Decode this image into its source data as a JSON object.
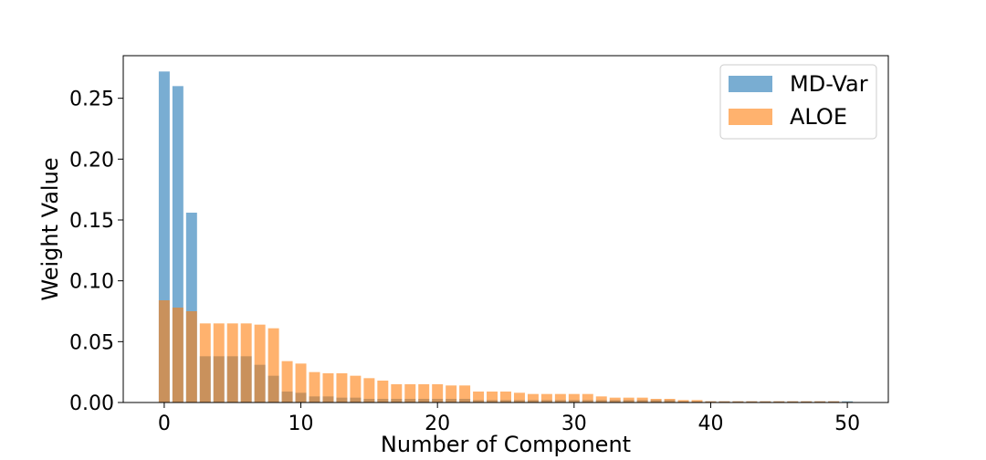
{
  "chart_data": {
    "type": "bar",
    "xlabel": "Number of Component",
    "ylabel": "Weight Value",
    "xlim": [
      -3,
      53
    ],
    "ylim": [
      0,
      0.285
    ],
    "xticks": [
      0,
      10,
      20,
      30,
      40,
      50
    ],
    "yticks": [
      0.0,
      0.05,
      0.1,
      0.15,
      0.2,
      0.25
    ],
    "ytick_labels": [
      "0.00",
      "0.05",
      "0.10",
      "0.15",
      "0.20",
      "0.25"
    ],
    "legend_position": "top-right",
    "grid": false,
    "series": [
      {
        "name": "MD-Var",
        "color": "#1f77b4",
        "opacity": 0.6,
        "x": [
          0,
          1,
          2,
          3,
          4,
          5,
          6,
          7,
          8,
          9,
          10,
          11,
          12,
          13,
          14,
          15,
          16,
          17,
          18,
          19,
          20,
          21,
          22,
          23,
          24,
          25,
          26,
          27,
          28,
          29,
          30,
          31,
          32,
          33,
          34,
          35,
          36,
          37,
          38,
          39,
          40,
          41,
          42,
          43,
          44,
          45,
          46,
          47,
          48,
          49,
          50
        ],
        "values": [
          0.272,
          0.26,
          0.156,
          0.038,
          0.038,
          0.038,
          0.038,
          0.031,
          0.022,
          0.009,
          0.008,
          0.005,
          0.005,
          0.004,
          0.004,
          0.003,
          0.003,
          0.003,
          0.003,
          0.003,
          0.003,
          0.003,
          0.003,
          0.002,
          0.002,
          0.002,
          0.002,
          0.002,
          0.002,
          0.002,
          0.002,
          0.002,
          0.002,
          0.002,
          0.002,
          0.002,
          0.002,
          0.002,
          0.001,
          0.001,
          0.001,
          0.001,
          0.001,
          0.001,
          0.001,
          0.001,
          0.001,
          0.001,
          0.001,
          0.001,
          0.001
        ]
      },
      {
        "name": "ALOE",
        "color": "#ff7f0e",
        "opacity": 0.6,
        "x": [
          0,
          1,
          2,
          3,
          4,
          5,
          6,
          7,
          8,
          9,
          10,
          11,
          12,
          13,
          14,
          15,
          16,
          17,
          18,
          19,
          20,
          21,
          22,
          23,
          24,
          25,
          26,
          27,
          28,
          29,
          30,
          31,
          32,
          33,
          34,
          35,
          36,
          37,
          38,
          39,
          40,
          41,
          42,
          43,
          44,
          45,
          46,
          47,
          48,
          49,
          50
        ],
        "values": [
          0.084,
          0.078,
          0.075,
          0.065,
          0.065,
          0.065,
          0.065,
          0.064,
          0.061,
          0.034,
          0.032,
          0.025,
          0.024,
          0.024,
          0.022,
          0.02,
          0.018,
          0.015,
          0.015,
          0.015,
          0.015,
          0.014,
          0.014,
          0.009,
          0.009,
          0.009,
          0.008,
          0.007,
          0.007,
          0.007,
          0.007,
          0.007,
          0.005,
          0.004,
          0.004,
          0.004,
          0.003,
          0.003,
          0.002,
          0.002,
          0.001,
          0.001,
          0.001,
          0.001,
          0.001,
          0.001,
          0.001,
          0.001,
          0.001,
          0.001,
          0.0005
        ]
      }
    ]
  }
}
